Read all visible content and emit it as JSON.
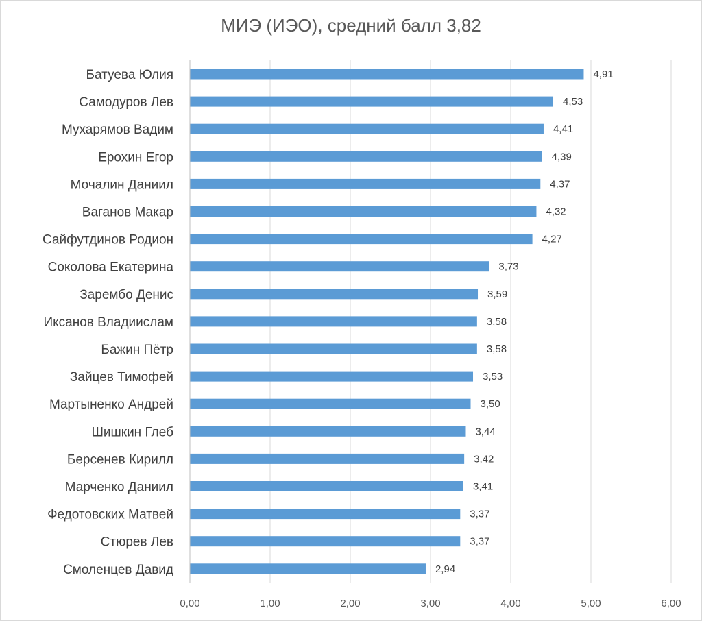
{
  "chart_data": {
    "type": "bar",
    "orientation": "horizontal",
    "title": "МИЭ (ИЭО), средний балл 3,82",
    "xlabel": "",
    "ylabel": "",
    "xlim": [
      0,
      6
    ],
    "x_ticks": [
      "0,00",
      "1,00",
      "2,00",
      "3,00",
      "4,00",
      "5,00",
      "6,00"
    ],
    "grid": "vertical",
    "legend": "none",
    "bar_color": "#5b9bd5",
    "categories": [
      "Батуева Юлия",
      "Самодуров Лев",
      "Мухарямов Вадим",
      "Ерохин Егор",
      "Мочалин Даниил",
      "Ваганов Макар",
      "Сайфутдинов Родион",
      "Соколова Екатерина",
      "Зарембо Денис",
      "Иксанов Владиислам",
      "Бажин Пётр",
      "Зайцев Тимофей",
      "Мартыненко Андрей",
      "Шишкин Глеб",
      "Берсенев Кирилл",
      "Марченко Даниил",
      "Федотовских Матвей",
      "Стюрев Лев",
      "Смоленцев Давид"
    ],
    "values": [
      4.91,
      4.53,
      4.41,
      4.39,
      4.37,
      4.32,
      4.27,
      3.73,
      3.59,
      3.58,
      3.58,
      3.53,
      3.5,
      3.44,
      3.42,
      3.41,
      3.37,
      3.37,
      2.94
    ],
    "data_labels": [
      "4,91",
      "4,53",
      "4,41",
      "4,39",
      "4,37",
      "4,32",
      "4,27",
      "3,73",
      "3,59",
      "3,58",
      "3,58",
      "3,53",
      "3,50",
      "3,44",
      "3,42",
      "3,41",
      "3,37",
      "3,37",
      "2,94"
    ]
  }
}
